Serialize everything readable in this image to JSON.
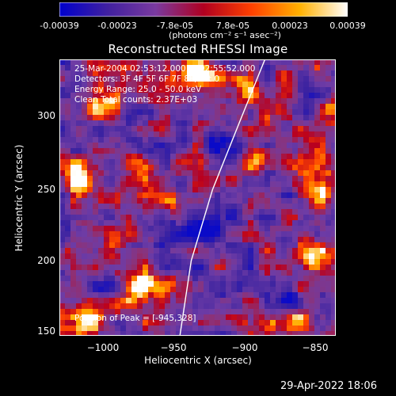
{
  "colorbar": {
    "ticks": [
      "-0.00039",
      "-0.00023",
      "-7.8e-05",
      "7.8e-05",
      "0.00023",
      "0.00039"
    ],
    "tick_values": [
      -0.00039,
      -0.00023,
      -7.8e-05,
      7.8e-05,
      0.00023,
      0.00039
    ],
    "range": [
      -0.00039,
      0.00039
    ],
    "unit_label": "(photons cm⁻² s⁻¹ asec⁻²)",
    "colors": [
      "#0000cc",
      "#4020a0",
      "#7a3aa0",
      "#b00020",
      "#ff4000",
      "#ffb000",
      "#ffffff"
    ]
  },
  "chart_data": {
    "type": "heatmap",
    "title": "Reconstructed RHESSI Image",
    "xlabel": "Heliocentric X (arcsec)",
    "ylabel": "Heliocentric Y (arcsec)",
    "xlim": [
      -1033,
      -838
    ],
    "ylim": [
      147,
      342
    ],
    "x_ticks": [
      -1000,
      -950,
      -900,
      -850
    ],
    "x_tick_labels": [
      "−1000",
      "−950",
      "−900",
      "−850"
    ],
    "y_ticks": [
      150,
      200,
      250,
      300
    ],
    "y_tick_labels": [
      "150",
      "200",
      "250",
      "300"
    ],
    "limb": [
      [
        -948,
        147
      ],
      [
        -940,
        200
      ],
      [
        -925,
        250
      ],
      [
        -905,
        300
      ],
      [
        -888,
        342
      ]
    ],
    "info_lines": [
      "25-Mar-2004 02:53:12.000 to 02:55:52.000",
      "Detectors: 3F 4F 5F 6F 7F 8F, Att 0",
      "Energy Range: 25.0 - 50.0 keV",
      "Clean    Total counts: 2.37E+03"
    ],
    "peak_label": "Position of Peak = [-945,328]",
    "peak": [
      -945,
      328
    ]
  },
  "footer": {
    "timestamp": "29-Apr-2022 18:06"
  }
}
